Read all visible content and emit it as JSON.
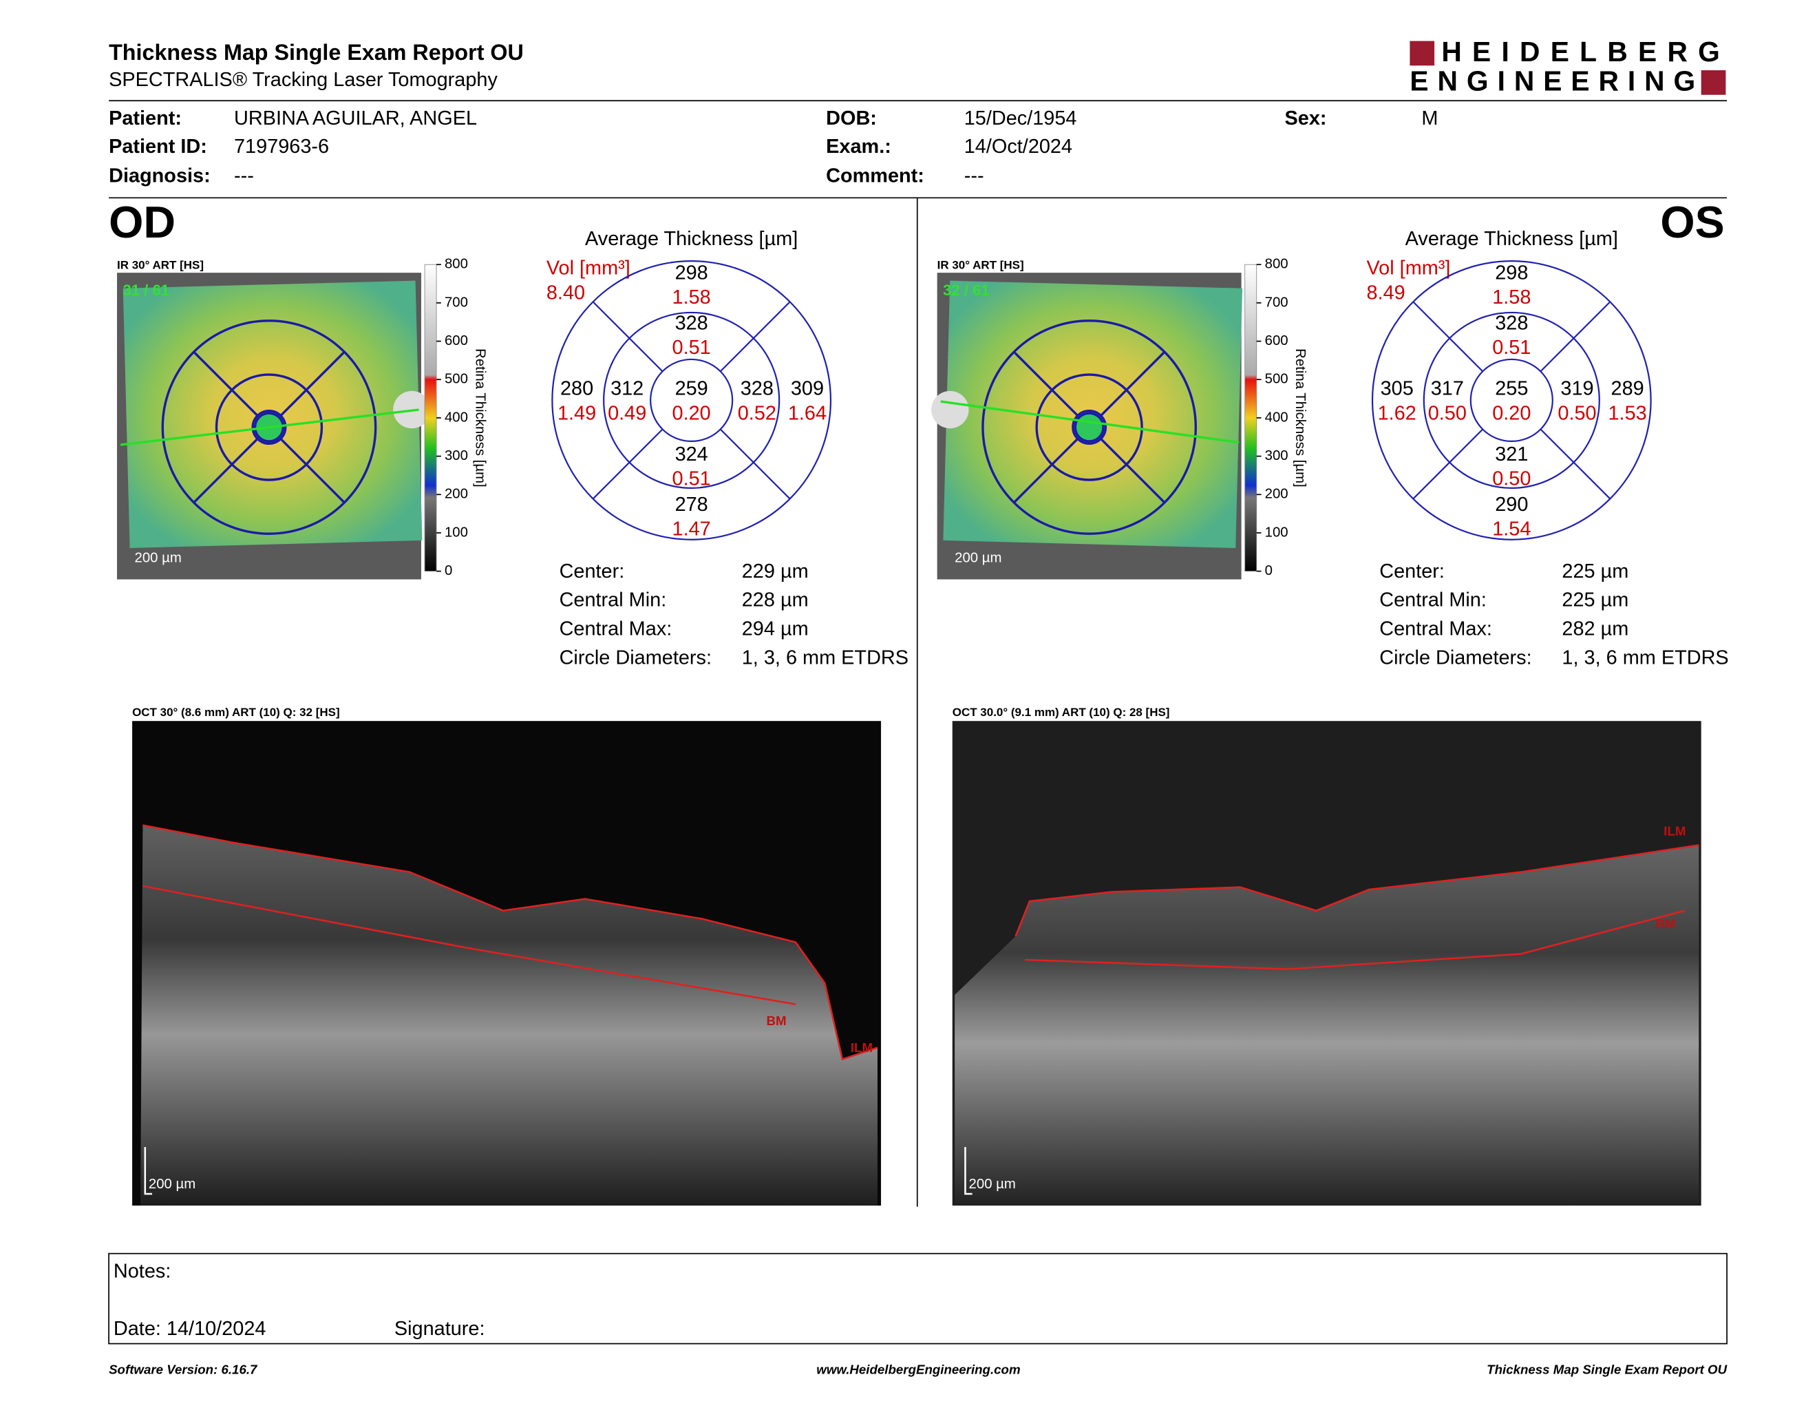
{
  "header": {
    "title": "Thickness Map Single Exam Report OU",
    "subtitle": "SPECTRALIS® Tracking Laser Tomography",
    "logo": [
      "HEIDELBERG",
      "ENGINEERING"
    ]
  },
  "patient": [
    {
      "label": "Patient:",
      "value": "URBINA AGUILAR, ANGEL"
    },
    {
      "label": "Patient ID:",
      "value": "7197963-6"
    },
    {
      "label": "Diagnosis:",
      "value": "---"
    },
    {
      "label": "DOB:",
      "value": "15/Dec/1954"
    },
    {
      "label": "Exam.:",
      "value": "14/Oct/2024"
    },
    {
      "label": "Comment:",
      "value": "---"
    },
    {
      "label": "Sex:",
      "value": "M"
    }
  ],
  "eyes": [
    {
      "side": "OD",
      "fundus": {
        "label": "IR 30° ART [HS]",
        "frame": "31 / 61",
        "scale": "200 µm"
      },
      "colorbar": {
        "title": "Retina  Thickness [µm]",
        "ticks": [
          "800",
          "700",
          "600",
          "500",
          "400",
          "300",
          "200",
          "100",
          "0"
        ]
      },
      "etdrs": {
        "title": "Average Thickness [µm]",
        "vol_label": "Vol [mm³]",
        "total_vol": "8.40",
        "sectors": [
          [
            "259",
            "0.20"
          ],
          [
            "328",
            "0.51"
          ],
          [
            "328",
            "0.52"
          ],
          [
            "324",
            "0.51"
          ],
          [
            "312",
            "0.49"
          ],
          [
            "298",
            "1.58"
          ],
          [
            "309",
            "1.64"
          ],
          [
            "278",
            "1.47"
          ],
          [
            "280",
            "1.49"
          ]
        ]
      },
      "stats": [
        {
          "label": "Center:",
          "value": "229 µm"
        },
        {
          "label": "Central Min:",
          "value": "228 µm"
        },
        {
          "label": "Central Max:",
          "value": "294 µm"
        },
        {
          "label": "Circle Diameters:",
          "value": "1, 3, 6 mm ETDRS"
        }
      ],
      "oct": {
        "label": "OCT 30° (8.6 mm) ART (10) Q: 32 [HS]",
        "ilm": "ILM",
        "bm": "BM",
        "scale": "200 µm"
      }
    },
    {
      "side": "OS",
      "fundus": {
        "label": "IR 30° ART [HS]",
        "frame": "32 / 61",
        "scale": "200 µm"
      },
      "colorbar": {
        "title": "Retina  Thickness [µm]",
        "ticks": [
          "800",
          "700",
          "600",
          "500",
          "400",
          "300",
          "200",
          "100",
          "0"
        ]
      },
      "etdrs": {
        "title": "Average Thickness [µm]",
        "vol_label": "Vol [mm³]",
        "total_vol": "8.49",
        "sectors": [
          [
            "255",
            "0.20"
          ],
          [
            "328",
            "0.51"
          ],
          [
            "319",
            "0.50"
          ],
          [
            "321",
            "0.50"
          ],
          [
            "317",
            "0.50"
          ],
          [
            "298",
            "1.58"
          ],
          [
            "289",
            "1.53"
          ],
          [
            "290",
            "1.54"
          ],
          [
            "305",
            "1.62"
          ]
        ]
      },
      "stats": [
        {
          "label": "Center:",
          "value": "225 µm"
        },
        {
          "label": "Central Min:",
          "value": "225 µm"
        },
        {
          "label": "Central Max:",
          "value": "282 µm"
        },
        {
          "label": "Circle Diameters:",
          "value": "1, 3, 6 mm ETDRS"
        }
      ],
      "oct": {
        "label": "OCT 30.0° (9.1 mm) ART (10) Q: 28 [HS]",
        "ilm": "ILM",
        "bm": "BM",
        "scale": "200 µm"
      }
    }
  ],
  "notes": {
    "label": "Notes:",
    "date": "Date: 14/10/2024",
    "signature": "Signature:"
  },
  "footer": {
    "left": "Software Version: 6.16.7",
    "center": "www.HeidelbergEngineering.com",
    "right": "Thickness Map Single Exam Report OU"
  }
}
